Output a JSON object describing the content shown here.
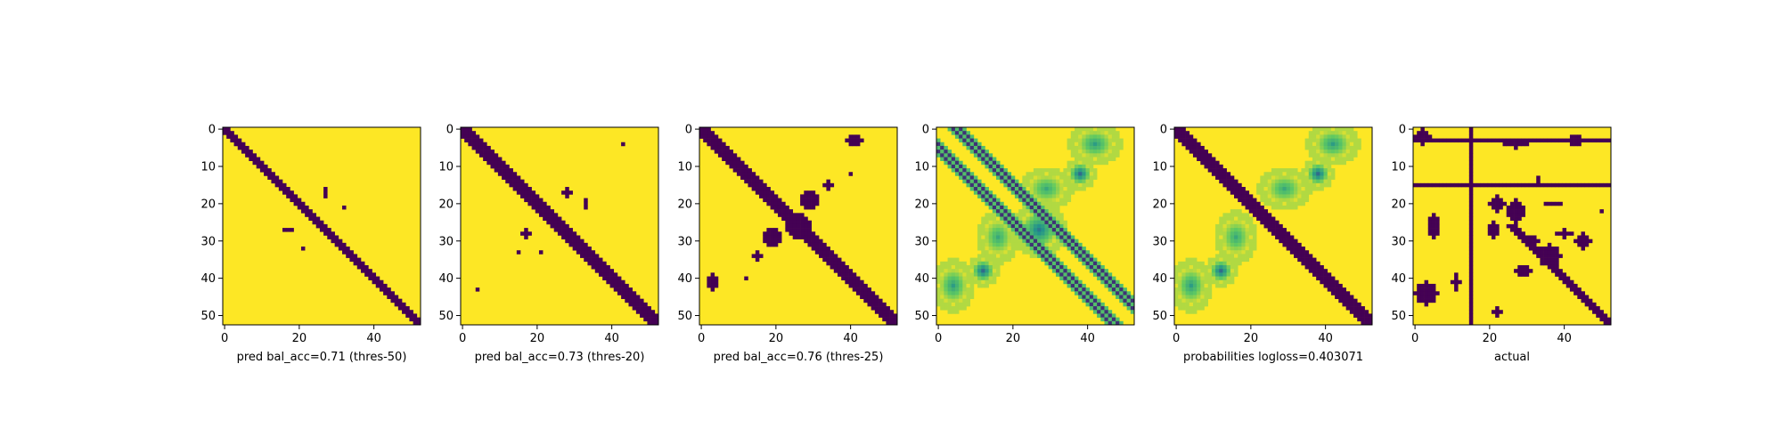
{
  "figure": {
    "background": "#ffffff"
  },
  "colormap": {
    "name": "viridis",
    "low": "#440154",
    "high": "#fde725"
  },
  "chart_data": [
    {
      "type": "heatmap",
      "title": "",
      "xlabel": "pred bal_acc=0.71 (thres-50)",
      "ylabel": "",
      "size": 53,
      "xticks": [
        0,
        20,
        40
      ],
      "yticks": [
        0,
        10,
        20,
        30,
        40,
        50
      ],
      "binary": true,
      "diagonal_band": {
        "half_width": 1.5,
        "start": 0,
        "end": 53
      },
      "blobs": [
        {
          "x": 27,
          "y": 17,
          "rx": 0.6,
          "ry": 1.2
        },
        {
          "x": 32,
          "y": 21,
          "rx": 0.6,
          "ry": 0.6
        },
        {
          "x": 17,
          "y": 27,
          "rx": 1.5,
          "ry": 0.6
        },
        {
          "x": 21,
          "y": 32,
          "rx": 0.6,
          "ry": 0.6
        }
      ]
    },
    {
      "type": "heatmap",
      "title": "",
      "xlabel": "pred bal_acc=0.73 (thres-20)",
      "ylabel": "",
      "size": 53,
      "xticks": [
        0,
        20,
        40
      ],
      "yticks": [
        0,
        10,
        20,
        30,
        40,
        50
      ],
      "binary": true,
      "diagonal_band": {
        "half_width": 2.0,
        "start": 0,
        "end": 53
      },
      "blobs": [
        {
          "x": 28,
          "y": 17,
          "rx": 1.2,
          "ry": 1.5
        },
        {
          "x": 33,
          "y": 20,
          "rx": 0.6,
          "ry": 1.2
        },
        {
          "x": 17,
          "y": 28,
          "rx": 1.8,
          "ry": 1.2
        },
        {
          "x": 21,
          "y": 33,
          "rx": 0.6,
          "ry": 0.8
        },
        {
          "x": 43,
          "y": 4,
          "rx": 0.6,
          "ry": 0.6
        },
        {
          "x": 4,
          "y": 43,
          "rx": 0.6,
          "ry": 0.6
        },
        {
          "x": 15,
          "y": 33,
          "rx": 0.6,
          "ry": 0.6
        }
      ]
    },
    {
      "type": "heatmap",
      "title": "",
      "xlabel": "pred bal_acc=0.76 (thres-25)",
      "ylabel": "",
      "size": 53,
      "xticks": [
        0,
        20,
        40
      ],
      "yticks": [
        0,
        10,
        20,
        30,
        40,
        50
      ],
      "binary": true,
      "diagonal_band": {
        "half_width": 2.5,
        "start": 0,
        "end": 53
      },
      "blobs": [
        {
          "x": 29,
          "y": 19,
          "rx": 2.8,
          "ry": 2.2
        },
        {
          "x": 19,
          "y": 29,
          "rx": 2.8,
          "ry": 2.2
        },
        {
          "x": 34,
          "y": 15,
          "rx": 1.6,
          "ry": 1.2
        },
        {
          "x": 15,
          "y": 34,
          "rx": 1.6,
          "ry": 1.2
        },
        {
          "x": 41,
          "y": 3,
          "rx": 2.5,
          "ry": 1.5
        },
        {
          "x": 3,
          "y": 41,
          "rx": 1.5,
          "ry": 2.5
        },
        {
          "x": 40,
          "y": 12,
          "rx": 0.6,
          "ry": 0.6
        },
        {
          "x": 12,
          "y": 40,
          "rx": 0.6,
          "ry": 0.6
        },
        {
          "x": 26,
          "y": 26,
          "rx": 3.5,
          "ry": 3.5
        }
      ]
    },
    {
      "type": "heatmap",
      "title": "",
      "xlabel": "",
      "ylabel": "",
      "size": 53,
      "xticks": [
        0,
        20,
        40
      ],
      "yticks": [
        0,
        10,
        20,
        30,
        40,
        50
      ],
      "binary": false,
      "offdiag_lines": [
        4,
        6
      ],
      "blobs": [
        {
          "x": 42,
          "y": 4,
          "rx": 5,
          "ry": 4,
          "v": 0.55
        },
        {
          "x": 4,
          "y": 42,
          "rx": 4,
          "ry": 5,
          "v": 0.55
        },
        {
          "x": 29,
          "y": 16,
          "rx": 5,
          "ry": 4,
          "v": 0.6
        },
        {
          "x": 16,
          "y": 29,
          "rx": 4,
          "ry": 5,
          "v": 0.6
        },
        {
          "x": 38,
          "y": 12,
          "rx": 3,
          "ry": 3,
          "v": 0.35
        },
        {
          "x": 12,
          "y": 38,
          "rx": 3,
          "ry": 3,
          "v": 0.35
        },
        {
          "x": 27,
          "y": 27,
          "rx": 5,
          "ry": 5,
          "v": 0.4
        }
      ]
    },
    {
      "type": "heatmap",
      "title": "",
      "xlabel": "probabilities logloss=0.403071",
      "ylabel": "",
      "size": 53,
      "xticks": [
        0,
        20,
        40
      ],
      "yticks": [
        0,
        10,
        20,
        30,
        40,
        50
      ],
      "binary": false,
      "diagonal_band": {
        "half_width": 2.0,
        "start": 0,
        "end": 53
      },
      "blobs": [
        {
          "x": 42,
          "y": 4,
          "rx": 5,
          "ry": 4,
          "v": 0.55
        },
        {
          "x": 4,
          "y": 42,
          "rx": 4,
          "ry": 5,
          "v": 0.55
        },
        {
          "x": 29,
          "y": 16,
          "rx": 5,
          "ry": 4,
          "v": 0.6
        },
        {
          "x": 16,
          "y": 29,
          "rx": 4,
          "ry": 5,
          "v": 0.6
        },
        {
          "x": 38,
          "y": 12,
          "rx": 3,
          "ry": 3,
          "v": 0.35
        },
        {
          "x": 12,
          "y": 38,
          "rx": 3,
          "ry": 3,
          "v": 0.35
        }
      ]
    },
    {
      "type": "heatmap",
      "title": "",
      "xlabel": "actual",
      "ylabel": "",
      "size": 53,
      "xticks": [
        0,
        20,
        40
      ],
      "yticks": [
        0,
        10,
        20,
        30,
        40,
        50
      ],
      "binary": true,
      "diagonal_band": {
        "half_width": 1.5,
        "start": 26,
        "end": 53
      },
      "row_lines": [
        3,
        15
      ],
      "col_lines": [
        15
      ],
      "blobs": [
        {
          "x": 2,
          "y": 2,
          "rx": 2,
          "ry": 2
        },
        {
          "x": 27,
          "y": 4,
          "rx": 3,
          "ry": 1
        },
        {
          "x": 43,
          "y": 3,
          "rx": 2.5,
          "ry": 1.5
        },
        {
          "x": 33,
          "y": 14,
          "rx": 0.6,
          "ry": 1
        },
        {
          "x": 22,
          "y": 20,
          "rx": 2,
          "ry": 2
        },
        {
          "x": 27,
          "y": 22,
          "rx": 2.5,
          "ry": 3
        },
        {
          "x": 37,
          "y": 20,
          "rx": 2.5,
          "ry": 0.6
        },
        {
          "x": 5,
          "y": 26,
          "rx": 1.5,
          "ry": 3
        },
        {
          "x": 21,
          "y": 27,
          "rx": 1.5,
          "ry": 2
        },
        {
          "x": 31,
          "y": 30,
          "rx": 2,
          "ry": 1.5
        },
        {
          "x": 29,
          "y": 38,
          "rx": 2,
          "ry": 1.5
        },
        {
          "x": 36,
          "y": 34,
          "rx": 3,
          "ry": 3
        },
        {
          "x": 3,
          "y": 44,
          "rx": 3,
          "ry": 3
        },
        {
          "x": 45,
          "y": 30,
          "rx": 2,
          "ry": 2
        },
        {
          "x": 50,
          "y": 22,
          "rx": 0.6,
          "ry": 0.6
        },
        {
          "x": 40,
          "y": 28,
          "rx": 2.5,
          "ry": 1
        },
        {
          "x": 11,
          "y": 41,
          "rx": 1,
          "ry": 2
        },
        {
          "x": 22,
          "y": 49,
          "rx": 1,
          "ry": 1
        }
      ]
    }
  ]
}
